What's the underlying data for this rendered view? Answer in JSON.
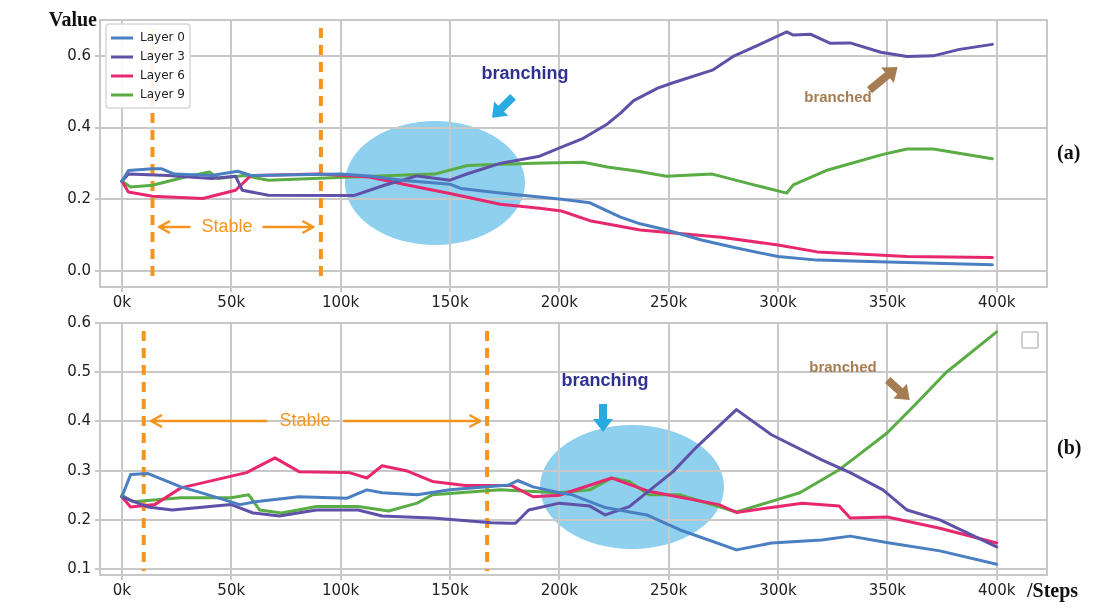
{
  "chart_data": [
    {
      "type": "line",
      "ylabel": "Value",
      "xlim": [
        -10000,
        423000
      ],
      "ylim": [
        -0.045,
        0.7
      ],
      "xticks": [
        {
          "value": 0,
          "label": "0k"
        },
        {
          "value": 50000,
          "label": "50k"
        },
        {
          "value": 100000,
          "label": "100k"
        },
        {
          "value": 150000,
          "label": "150k"
        },
        {
          "value": 200000,
          "label": "200k"
        },
        {
          "value": 250000,
          "label": "250k"
        },
        {
          "value": 300000,
          "label": "300k"
        },
        {
          "value": 350000,
          "label": "350k"
        },
        {
          "value": 400000,
          "label": "400k"
        }
      ],
      "yticks": [
        {
          "value": 0,
          "label": "0.0"
        },
        0.2,
        0.4,
        0.6
      ],
      "grid": true,
      "legend": "top left",
      "series": [
        {
          "name": "Layer 0",
          "color": "#4a7fc1",
          "x": [
            0,
            3000,
            14000,
            18000,
            24000,
            41000,
            53000,
            59000,
            100000,
            113000,
            128000,
            150000,
            155000,
            173000,
            191000,
            201000,
            214000,
            228000,
            236000,
            249000,
            265000,
            280000,
            300000,
            318000,
            350000,
            398000
          ],
          "values": [
            0.25,
            0.28,
            0.285,
            0.285,
            0.27,
            0.266,
            0.278,
            0.266,
            0.27,
            0.265,
            0.253,
            0.242,
            0.23,
            0.217,
            0.206,
            0.2,
            0.19,
            0.15,
            0.133,
            0.114,
            0.086,
            0.065,
            0.04,
            0.03,
            0.025,
            0.017
          ]
        },
        {
          "name": "Layer 3",
          "color": "#6050a8",
          "x": [
            0,
            3000,
            21000,
            41000,
            52000,
            55000,
            67000,
            106000,
            120000,
            135000,
            150000,
            158000,
            173000,
            191000,
            201000,
            211000,
            222000,
            228000,
            234000,
            245000,
            252000,
            270000,
            280000,
            291000,
            304000,
            307000,
            315000,
            324000,
            333000,
            347000,
            359000,
            371000,
            383000,
            398000
          ],
          "values": [
            0.25,
            0.27,
            0.266,
            0.258,
            0.264,
            0.225,
            0.211,
            0.21,
            0.239,
            0.265,
            0.253,
            0.271,
            0.3,
            0.32,
            0.345,
            0.37,
            0.41,
            0.44,
            0.475,
            0.51,
            0.525,
            0.56,
            0.6,
            0.63,
            0.667,
            0.658,
            0.66,
            0.635,
            0.636,
            0.61,
            0.598,
            0.6,
            0.618,
            0.632
          ]
        },
        {
          "name": "Layer 6",
          "color": "#e8286e",
          "x": [
            0,
            3000,
            14000,
            37000,
            52000,
            59000,
            90000,
            113000,
            135000,
            150000,
            173000,
            191000,
            201000,
            214000,
            237000,
            274000,
            300000,
            318000,
            359000,
            398000
          ],
          "values": [
            0.25,
            0.22,
            0.208,
            0.202,
            0.225,
            0.266,
            0.27,
            0.262,
            0.234,
            0.216,
            0.186,
            0.175,
            0.167,
            0.14,
            0.114,
            0.094,
            0.072,
            0.053,
            0.04,
            0.037
          ]
        },
        {
          "name": "Layer 9",
          "color": "#5aac44",
          "x": [
            0,
            4000,
            14000,
            29000,
            40000,
            44000,
            56000,
            67000,
            105000,
            143000,
            158000,
            188000,
            211000,
            222000,
            236000,
            249000,
            270000,
            289000,
            304000,
            307000,
            322000,
            348000,
            359000,
            371000,
            398000
          ],
          "values": [
            0.25,
            0.234,
            0.239,
            0.262,
            0.276,
            0.258,
            0.266,
            0.253,
            0.262,
            0.27,
            0.294,
            0.3,
            0.303,
            0.29,
            0.278,
            0.264,
            0.27,
            0.24,
            0.217,
            0.24,
            0.28,
            0.325,
            0.34,
            0.34,
            0.313
          ]
        }
      ],
      "ref_lines": [
        {
          "axis": "x",
          "value": 14000,
          "color": "#f7941d",
          "line_style": "dashed"
        },
        {
          "axis": "x",
          "value": 91000,
          "color": "#f7941d",
          "line_style": "dashed"
        }
      ],
      "annotations": [
        "Stable",
        "branching",
        "branched",
        "(a)"
      ]
    },
    {
      "type": "line",
      "xlabel": "/Steps",
      "xlim": [
        -10000,
        423000
      ],
      "ylim": [
        0.088,
        0.6
      ],
      "xticks": [
        {
          "value": 0,
          "label": "0k"
        },
        {
          "value": 50000,
          "label": "50k"
        },
        {
          "value": 100000,
          "label": "100k"
        },
        {
          "value": 150000,
          "label": "150k"
        },
        {
          "value": 200000,
          "label": "200k"
        },
        {
          "value": 250000,
          "label": "250k"
        },
        {
          "value": 300000,
          "label": "300k"
        },
        {
          "value": 350000,
          "label": "350k"
        },
        {
          "value": 400000,
          "label": "400k"
        }
      ],
      "yticks": [
        0.1,
        0.2,
        0.3,
        0.4,
        0.5,
        0.6
      ],
      "grid": true,
      "series": [
        {
          "color": "#4a7fc1",
          "x": [
            0,
            4000,
            12000,
            27000,
            35000,
            54000,
            61000,
            81000,
            103000,
            112000,
            119000,
            135000,
            150000,
            177000,
            181000,
            188000,
            200000,
            206000,
            221000,
            240000,
            255000,
            281000,
            297000,
            320000,
            333000,
            351000,
            374000,
            400000
          ],
          "values": [
            0.247,
            0.292,
            0.294,
            0.267,
            0.257,
            0.231,
            0.237,
            0.247,
            0.244,
            0.261,
            0.255,
            0.251,
            0.261,
            0.271,
            0.28,
            0.267,
            0.255,
            0.251,
            0.225,
            0.21,
            0.18,
            0.139,
            0.153,
            0.159,
            0.167,
            0.153,
            0.137,
            0.11
          ]
        },
        {
          "color": "#6050a8",
          "x": [
            0,
            12000,
            23000,
            50000,
            60000,
            72000,
            89000,
            108000,
            119000,
            142000,
            169000,
            180000,
            186000,
            200000,
            214000,
            221000,
            232000,
            252000,
            263000,
            281000,
            297000,
            320000,
            333000,
            348000,
            359000,
            374000,
            400000
          ],
          "values": [
            0.247,
            0.226,
            0.22,
            0.231,
            0.214,
            0.208,
            0.22,
            0.22,
            0.208,
            0.204,
            0.194,
            0.193,
            0.22,
            0.234,
            0.228,
            0.21,
            0.227,
            0.298,
            0.349,
            0.424,
            0.373,
            0.322,
            0.296,
            0.261,
            0.22,
            0.2,
            0.145
          ]
        },
        {
          "color": "#e8286e",
          "x": [
            0,
            4000,
            15000,
            27000,
            57000,
            70000,
            81000,
            104000,
            112000,
            119000,
            130000,
            142000,
            157000,
            178000,
            188000,
            200000,
            224000,
            241000,
            273000,
            281000,
            311000,
            328000,
            333000,
            350000,
            374000,
            400000
          ],
          "values": [
            0.247,
            0.226,
            0.231,
            0.265,
            0.296,
            0.326,
            0.298,
            0.296,
            0.285,
            0.31,
            0.3,
            0.278,
            0.27,
            0.27,
            0.247,
            0.25,
            0.285,
            0.258,
            0.231,
            0.215,
            0.234,
            0.228,
            0.204,
            0.206,
            0.183,
            0.153
          ]
        },
        {
          "color": "#5aac44",
          "x": [
            0,
            5000,
            27000,
            50000,
            58000,
            63000,
            73000,
            89000,
            108000,
            122000,
            135000,
            142000,
            173000,
            200000,
            214000,
            224000,
            232000,
            241000,
            255000,
            281000,
            310000,
            328000,
            336000,
            350000,
            362000,
            377000,
            400000
          ],
          "values": [
            0.25,
            0.237,
            0.245,
            0.245,
            0.251,
            0.22,
            0.214,
            0.227,
            0.227,
            0.218,
            0.234,
            0.251,
            0.261,
            0.255,
            0.261,
            0.285,
            0.278,
            0.251,
            0.251,
            0.216,
            0.255,
            0.302,
            0.329,
            0.377,
            0.431,
            0.5,
            0.582
          ]
        }
      ],
      "ref_lines": [
        {
          "axis": "x",
          "value": 10000,
          "color": "#f7941d",
          "line_style": "dashed"
        },
        {
          "axis": "x",
          "value": 167000,
          "color": "#f7941d",
          "line_style": "dashed"
        }
      ],
      "annotations": [
        "Stable",
        "branching",
        "branched",
        "(b)"
      ]
    }
  ]
}
